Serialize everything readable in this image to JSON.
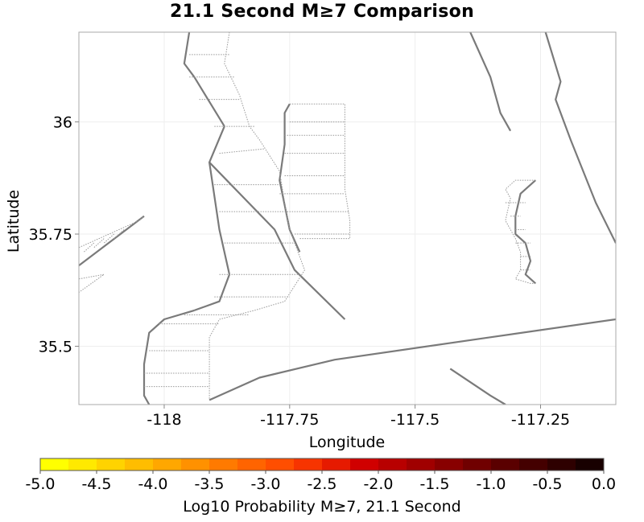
{
  "title": "21.1 Second M≥7 Comparison",
  "chart_data": {
    "type": "map",
    "xlabel": "Longitude",
    "ylabel": "Latitude",
    "xlim": [
      -118.17,
      -117.1
    ],
    "ylim": [
      35.37,
      36.2
    ],
    "xticks": [
      -118,
      -117.75,
      -117.5,
      -117.25
    ],
    "xtick_labels": [
      "-118",
      "-117.75",
      "-117.5",
      "-117.25"
    ],
    "yticks": [
      35.5,
      35.75,
      36
    ],
    "ytick_labels": [
      "35.5",
      "35.75",
      "36"
    ],
    "grid": true,
    "traces": [
      {
        "style": "solid",
        "points": [
          [
            -117.95,
            36.2
          ],
          [
            -117.96,
            36.13
          ],
          [
            -117.94,
            36.1
          ],
          [
            -117.88,
            35.99
          ]
        ]
      },
      {
        "style": "solid",
        "points": [
          [
            -117.88,
            35.99
          ],
          [
            -117.91,
            35.91
          ],
          [
            -117.78,
            35.76
          ],
          [
            -117.74,
            35.67
          ],
          [
            -117.64,
            35.56
          ]
        ]
      },
      {
        "style": "solid",
        "points": [
          [
            -117.91,
            35.91
          ],
          [
            -117.89,
            35.76
          ],
          [
            -117.87,
            35.66
          ],
          [
            -117.89,
            35.6
          ],
          [
            -117.94,
            35.58
          ]
        ]
      },
      {
        "style": "solid",
        "points": [
          [
            -117.94,
            35.58
          ],
          [
            -118.0,
            35.56
          ],
          [
            -118.03,
            35.53
          ],
          [
            -118.04,
            35.46
          ],
          [
            -118.04,
            35.39
          ],
          [
            -118.03,
            35.37
          ]
        ]
      },
      {
        "style": "solid",
        "points": [
          [
            -117.75,
            36.04
          ],
          [
            -117.76,
            36.02
          ],
          [
            -117.76,
            35.95
          ],
          [
            -117.77,
            35.87
          ],
          [
            -117.75,
            35.76
          ],
          [
            -117.73,
            35.71
          ]
        ]
      },
      {
        "style": "solid",
        "points": [
          [
            -117.39,
            36.2
          ],
          [
            -117.35,
            36.1
          ],
          [
            -117.33,
            36.02
          ],
          [
            -117.31,
            35.98
          ]
        ]
      },
      {
        "style": "solid",
        "points": [
          [
            -117.24,
            36.2
          ],
          [
            -117.21,
            36.09
          ],
          [
            -117.22,
            36.05
          ],
          [
            -117.19,
            35.96
          ],
          [
            -117.14,
            35.82
          ],
          [
            -117.1,
            35.73
          ]
        ]
      },
      {
        "style": "solid",
        "points": [
          [
            -117.26,
            35.87
          ],
          [
            -117.29,
            35.84
          ],
          [
            -117.3,
            35.79
          ],
          [
            -117.3,
            35.75
          ],
          [
            -117.28,
            35.73
          ],
          [
            -117.27,
            35.69
          ],
          [
            -117.28,
            35.66
          ],
          [
            -117.26,
            35.64
          ]
        ]
      },
      {
        "style": "solid",
        "points": [
          [
            -118.17,
            35.68
          ],
          [
            -118.04,
            35.79
          ]
        ]
      },
      {
        "style": "solid",
        "points": [
          [
            -117.91,
            35.38
          ],
          [
            -117.81,
            35.43
          ],
          [
            -117.66,
            35.47
          ],
          [
            -117.35,
            35.52
          ],
          [
            -117.1,
            35.56
          ]
        ]
      },
      {
        "style": "solid",
        "points": [
          [
            -117.43,
            35.45
          ],
          [
            -117.35,
            35.39
          ],
          [
            -117.32,
            35.37
          ]
        ]
      },
      {
        "style": "dotted",
        "points": [
          [
            -117.87,
            36.2
          ],
          [
            -117.88,
            36.13
          ],
          [
            -117.85,
            36.06
          ],
          [
            -117.83,
            35.99
          ],
          [
            -117.81,
            35.96
          ],
          [
            -117.77,
            35.89
          ],
          [
            -117.76,
            35.82
          ],
          [
            -117.75,
            35.76
          ],
          [
            -117.74,
            35.73
          ],
          [
            -117.72,
            35.67
          ],
          [
            -117.76,
            35.6
          ],
          [
            -117.82,
            35.58
          ],
          [
            -117.89,
            35.56
          ],
          [
            -117.91,
            35.52
          ],
          [
            -117.91,
            35.45
          ],
          [
            -117.91,
            35.38
          ]
        ]
      },
      {
        "style": "dotted",
        "points": [
          [
            -117.75,
            36.04
          ],
          [
            -117.64,
            36.04
          ],
          [
            -117.64,
            35.99
          ],
          [
            -117.64,
            35.96
          ],
          [
            -117.64,
            35.89
          ],
          [
            -117.64,
            35.85
          ],
          [
            -117.63,
            35.78
          ],
          [
            -117.63,
            35.74
          ],
          [
            -117.73,
            35.74
          ]
        ]
      },
      {
        "style": "dotted",
        "points": [
          [
            -117.26,
            35.87
          ],
          [
            -117.3,
            35.87
          ],
          [
            -117.32,
            35.85
          ],
          [
            -117.31,
            35.83
          ],
          [
            -117.32,
            35.78
          ],
          [
            -117.31,
            35.76
          ],
          [
            -117.3,
            35.74
          ],
          [
            -117.29,
            35.71
          ],
          [
            -117.29,
            35.67
          ],
          [
            -117.3,
            35.65
          ],
          [
            -117.27,
            35.64
          ],
          [
            -117.26,
            35.64
          ]
        ]
      },
      {
        "style": "dotted",
        "points": [
          [
            -118.17,
            35.72
          ],
          [
            -118.05,
            35.78
          ],
          [
            -118.04,
            35.79
          ]
        ]
      },
      {
        "style": "dotted",
        "points": [
          [
            -118.17,
            35.65
          ],
          [
            -118.12,
            35.66
          ],
          [
            -118.17,
            35.62
          ]
        ]
      }
    ],
    "hatch": [
      {
        "from": [
          [
            -117.95,
            36.15
          ],
          [
            -117.95,
            36.1
          ],
          [
            -117.93,
            36.05
          ],
          [
            -117.9,
            35.99
          ],
          [
            -117.89,
            35.93
          ],
          [
            -117.9,
            35.86
          ],
          [
            -117.89,
            35.8
          ],
          [
            -117.88,
            35.73
          ],
          [
            -117.89,
            35.66
          ],
          [
            -117.9,
            35.61
          ],
          [
            -117.96,
            35.57
          ],
          [
            -118.01,
            35.55
          ],
          [
            -118.03,
            35.49
          ],
          [
            -118.04,
            35.44
          ],
          [
            -118.04,
            35.41
          ]
        ],
        "to": [
          [
            -117.87,
            36.15
          ],
          [
            -117.86,
            36.1
          ],
          [
            -117.85,
            36.05
          ],
          [
            -117.82,
            35.99
          ],
          [
            -117.8,
            35.94
          ],
          [
            -117.77,
            35.86
          ],
          [
            -117.76,
            35.8
          ],
          [
            -117.74,
            35.73
          ],
          [
            -117.73,
            35.66
          ],
          [
            -117.75,
            35.61
          ],
          [
            -117.83,
            35.57
          ],
          [
            -117.89,
            35.55
          ],
          [
            -117.91,
            35.49
          ],
          [
            -117.91,
            35.44
          ],
          [
            -117.91,
            35.41
          ]
        ]
      },
      {
        "from": [
          [
            -117.75,
            36.0
          ],
          [
            -117.76,
            35.97
          ],
          [
            -117.76,
            35.93
          ],
          [
            -117.76,
            35.88
          ],
          [
            -117.77,
            35.84
          ],
          [
            -117.76,
            35.8
          ],
          [
            -117.74,
            35.75
          ]
        ],
        "to": [
          [
            -117.64,
            36.0
          ],
          [
            -117.64,
            35.97
          ],
          [
            -117.64,
            35.93
          ],
          [
            -117.64,
            35.88
          ],
          [
            -117.64,
            35.84
          ],
          [
            -117.63,
            35.8
          ],
          [
            -117.63,
            35.75
          ]
        ]
      },
      {
        "from": [
          [
            -117.32,
            35.82
          ],
          [
            -117.31,
            35.79
          ],
          [
            -117.3,
            35.76
          ],
          [
            -117.3,
            35.73
          ],
          [
            -117.29,
            35.7
          ],
          [
            -117.29,
            35.67
          ]
        ],
        "to": [
          [
            -117.28,
            35.82
          ],
          [
            -117.29,
            35.79
          ],
          [
            -117.28,
            35.76
          ],
          [
            -117.27,
            35.73
          ],
          [
            -117.27,
            35.7
          ],
          [
            -117.27,
            35.67
          ]
        ]
      },
      {
        "from": [
          [
            -118.14,
            35.73
          ],
          [
            -118.12,
            35.74
          ],
          [
            -118.1,
            35.75
          ],
          [
            -118.08,
            35.76
          ]
        ],
        "to": [
          [
            -118.16,
            35.71
          ],
          [
            -118.14,
            35.72
          ],
          [
            -118.12,
            35.73
          ],
          [
            -118.1,
            35.74
          ]
        ]
      }
    ],
    "colorbar": {
      "label": "Log10 Probability M≥7, 21.1 Second",
      "range": [
        -5.0,
        0.0
      ],
      "ticks": [
        -5.0,
        -4.5,
        -4.0,
        -3.5,
        -3.0,
        -2.5,
        -2.0,
        -1.5,
        -1.0,
        -0.5,
        0.0
      ],
      "tick_labels": [
        "-5.0",
        "-4.5",
        "-4.0",
        "-3.5",
        "-3.0",
        "-2.5",
        "-2.0",
        "-1.5",
        "-1.0",
        "-0.5",
        "0.0"
      ],
      "colors": [
        "#ffff00",
        "#ffe900",
        "#ffd300",
        "#ffbd00",
        "#ffa700",
        "#ff9100",
        "#ff7a00",
        "#ff6400",
        "#ff4e00",
        "#f73400",
        "#e61a00",
        "#d00000",
        "#b80000",
        "#a00000",
        "#880000",
        "#700000",
        "#5a0000",
        "#440000",
        "#2e0000",
        "#180000"
      ]
    }
  }
}
